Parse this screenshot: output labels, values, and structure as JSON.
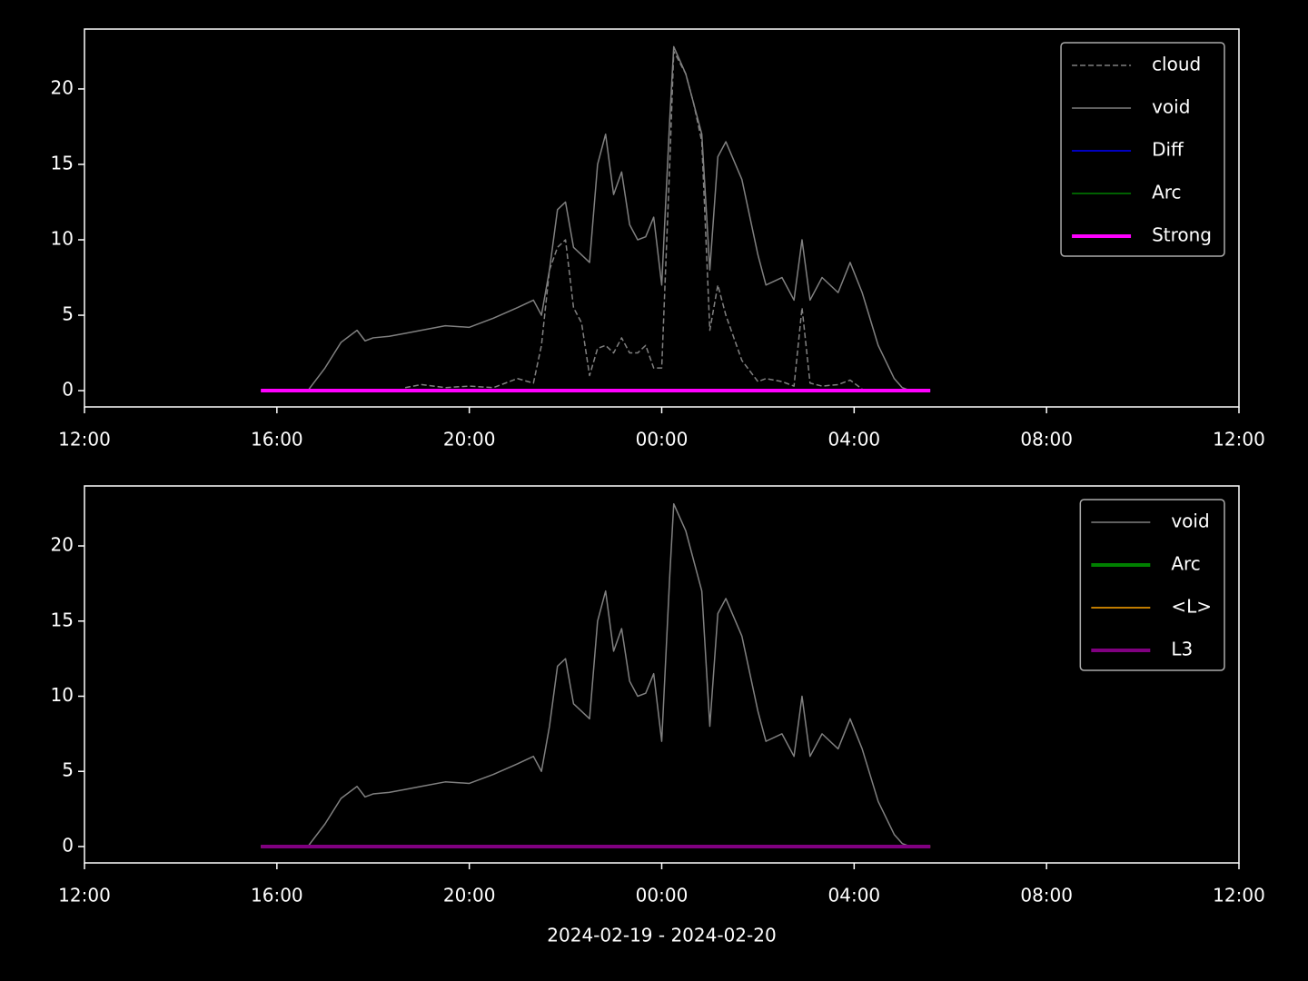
{
  "chart_data": [
    {
      "type": "line",
      "x": [
        "15:40",
        "16:00",
        "16:20",
        "16:40",
        "17:00",
        "17:20",
        "17:40",
        "17:50",
        "18:00",
        "18:20",
        "18:40",
        "19:00",
        "19:30",
        "20:00",
        "20:30",
        "21:00",
        "21:20",
        "21:30",
        "21:40",
        "21:50",
        "22:00",
        "22:10",
        "22:20",
        "22:30",
        "22:40",
        "22:50",
        "23:00",
        "23:10",
        "23:20",
        "23:30",
        "23:40",
        "23:50",
        "00:00",
        "00:10",
        "00:15",
        "00:30",
        "00:40",
        "00:50",
        "01:00",
        "01:10",
        "01:20",
        "01:40",
        "02:00",
        "02:10",
        "02:30",
        "02:45",
        "02:55",
        "03:05",
        "03:20",
        "03:40",
        "03:55",
        "04:10",
        "04:30",
        "04:50",
        "05:00",
        "05:10",
        "05:20",
        "05:35"
      ],
      "series": [
        {
          "name": "cloud",
          "color": "#808080",
          "dashed": true,
          "linewidth": 1.5,
          "values": [
            null,
            null,
            null,
            null,
            null,
            null,
            null,
            null,
            null,
            null,
            0.2,
            0.4,
            0.2,
            0.3,
            0.2,
            0.8,
            0.5,
            3.0,
            8.0,
            9.5,
            10.0,
            5.5,
            4.5,
            1.0,
            2.8,
            3.0,
            2.5,
            3.5,
            2.5,
            2.5,
            3.0,
            1.5,
            1.5,
            15,
            22.5,
            21,
            19,
            16.5,
            4.0,
            7.0,
            5.0,
            2.0,
            0.6,
            0.8,
            0.6,
            0.3,
            5.5,
            0.5,
            0.3,
            0.4,
            0.7,
            0.1,
            null,
            null,
            null,
            null,
            null,
            null
          ]
        },
        {
          "name": "void",
          "color": "#808080",
          "linewidth": 1.5,
          "values": [
            null,
            null,
            null,
            0.1,
            1.5,
            3.2,
            4.0,
            3.3,
            3.5,
            3.6,
            3.8,
            4.0,
            4.3,
            4.2,
            4.8,
            5.5,
            6.0,
            5.0,
            8.0,
            12.0,
            12.5,
            9.5,
            9.0,
            8.5,
            15.0,
            17.0,
            13.0,
            14.5,
            11.0,
            10.0,
            10.2,
            11.5,
            7.0,
            18.0,
            22.8,
            21.0,
            19.0,
            17.0,
            8.0,
            15.5,
            16.5,
            14.0,
            9.0,
            7.0,
            7.5,
            6.0,
            10.0,
            6.0,
            7.5,
            6.5,
            8.5,
            6.5,
            3.0,
            0.8,
            0.2,
            0.0,
            null,
            null
          ]
        },
        {
          "name": "Diff",
          "color": "#0000ff",
          "linewidth": 1.5,
          "values": [
            0,
            0,
            0,
            0,
            0,
            0,
            0,
            0,
            0,
            0,
            0,
            0,
            0,
            0,
            0,
            0,
            0,
            0,
            0,
            0,
            0,
            0,
            0,
            0,
            0,
            0,
            0,
            0,
            0,
            0,
            0,
            0,
            0,
            0,
            0,
            0,
            0,
            0,
            0,
            0,
            0,
            0,
            0,
            0,
            0,
            0,
            0,
            0,
            0,
            0,
            0,
            0,
            0,
            0,
            0,
            0,
            0,
            0
          ]
        },
        {
          "name": "Arc",
          "color": "#008000",
          "linewidth": 1.5,
          "values": [
            0,
            0,
            0,
            0,
            0,
            0,
            0,
            0,
            0,
            0,
            0,
            0,
            0,
            0,
            0,
            0,
            0,
            0,
            0,
            0,
            0,
            0,
            0,
            0,
            0,
            0,
            0,
            0,
            0,
            0,
            0,
            0,
            0,
            0,
            0,
            0,
            0,
            0,
            0,
            0,
            0,
            0,
            0,
            0,
            0,
            0,
            0,
            0,
            0,
            0,
            0,
            0,
            0,
            0,
            0,
            0,
            0,
            0
          ]
        },
        {
          "name": "Strong",
          "color": "#ff00ff",
          "linewidth": 4,
          "values": [
            0,
            0,
            0,
            0,
            0,
            0,
            0,
            0,
            0,
            0,
            0,
            0,
            0,
            0,
            0,
            0,
            0,
            0,
            0,
            0,
            0,
            0,
            0,
            0,
            0,
            0,
            0,
            0,
            0,
            0,
            0,
            0,
            0,
            0,
            0,
            0,
            0,
            0,
            0,
            0,
            0,
            0,
            0,
            0,
            0,
            0,
            0,
            0,
            0,
            0,
            0,
            0,
            0,
            0,
            0,
            0,
            0,
            0
          ]
        }
      ],
      "xlim": [
        "12:00",
        "12:00"
      ],
      "xticks": [
        "12:00",
        "16:00",
        "20:00",
        "00:00",
        "04:00",
        "08:00",
        "12:00"
      ],
      "ylim": [
        -1.08,
        23.97
      ],
      "yticks": [
        0,
        5,
        10,
        15,
        20
      ],
      "legend": "upper right"
    },
    {
      "type": "line",
      "x": [
        "15:40",
        "16:00",
        "16:20",
        "16:40",
        "17:00",
        "17:20",
        "17:40",
        "17:50",
        "18:00",
        "18:20",
        "18:40",
        "19:00",
        "19:30",
        "20:00",
        "20:30",
        "21:00",
        "21:20",
        "21:30",
        "21:40",
        "21:50",
        "22:00",
        "22:10",
        "22:20",
        "22:30",
        "22:40",
        "22:50",
        "23:00",
        "23:10",
        "23:20",
        "23:30",
        "23:40",
        "23:50",
        "00:00",
        "00:10",
        "00:15",
        "00:30",
        "00:40",
        "00:50",
        "01:00",
        "01:10",
        "01:20",
        "01:40",
        "02:00",
        "02:10",
        "02:30",
        "02:45",
        "02:55",
        "03:05",
        "03:20",
        "03:40",
        "03:55",
        "04:10",
        "04:30",
        "04:50",
        "05:00",
        "05:10",
        "05:20",
        "05:35"
      ],
      "series": [
        {
          "name": "void",
          "color": "#808080",
          "linewidth": 1.5,
          "values": [
            null,
            null,
            null,
            0.1,
            1.5,
            3.2,
            4.0,
            3.3,
            3.5,
            3.6,
            3.8,
            4.0,
            4.3,
            4.2,
            4.8,
            5.5,
            6.0,
            5.0,
            8.0,
            12.0,
            12.5,
            9.5,
            9.0,
            8.5,
            15.0,
            17.0,
            13.0,
            14.5,
            11.0,
            10.0,
            10.2,
            11.5,
            7.0,
            18.0,
            22.8,
            21.0,
            19.0,
            17.0,
            8.0,
            15.5,
            16.5,
            14.0,
            9.0,
            7.0,
            7.5,
            6.0,
            10.0,
            6.0,
            7.5,
            6.5,
            8.5,
            6.5,
            3.0,
            0.8,
            0.2,
            0.0,
            null,
            null
          ]
        },
        {
          "name": "Arc",
          "color": "#008000",
          "linewidth": 4,
          "values": [
            0,
            0,
            0,
            0,
            0,
            0,
            0,
            0,
            0,
            0,
            0,
            0,
            0,
            0,
            0,
            0,
            0,
            0,
            0,
            0,
            0,
            0,
            0,
            0,
            0,
            0,
            0,
            0,
            0,
            0,
            0,
            0,
            0,
            0,
            0,
            0,
            0,
            0,
            0,
            0,
            0,
            0,
            0,
            0,
            0,
            0,
            0,
            0,
            0,
            0,
            0,
            0,
            0,
            0,
            0,
            0,
            0,
            0
          ]
        },
        {
          "name": "<L>",
          "color": "#ffa500",
          "linewidth": 1.5,
          "values": [
            0,
            0,
            0,
            0,
            0,
            0,
            0,
            0,
            0,
            0,
            0,
            0,
            0,
            0,
            0,
            0,
            0,
            0,
            0,
            0,
            0,
            0,
            0,
            0,
            0,
            0,
            0,
            0,
            0,
            0,
            0,
            0,
            0,
            0,
            0,
            0,
            0,
            0,
            0,
            0,
            0,
            0,
            0,
            0,
            0,
            0,
            0,
            0,
            0,
            0,
            0,
            0,
            0,
            0,
            0,
            0,
            0,
            0
          ]
        },
        {
          "name": "L3",
          "color": "#800080",
          "linewidth": 4,
          "values": [
            0,
            0,
            0,
            0,
            0,
            0,
            0,
            0,
            0,
            0,
            0,
            0,
            0,
            0,
            0,
            0,
            0,
            0,
            0,
            0,
            0,
            0,
            0,
            0,
            0,
            0,
            0,
            0,
            0,
            0,
            0,
            0,
            0,
            0,
            0,
            0,
            0,
            0,
            0,
            0,
            0,
            0,
            0,
            0,
            0,
            0,
            0,
            0,
            0,
            0,
            0,
            0,
            0,
            0,
            0,
            0,
            0,
            0
          ]
        }
      ],
      "xlim": [
        "12:00",
        "12:00"
      ],
      "xticks": [
        "12:00",
        "16:00",
        "20:00",
        "00:00",
        "04:00",
        "08:00",
        "12:00"
      ],
      "ylim": [
        -1.09,
        23.99
      ],
      "yticks": [
        0,
        5,
        10,
        15,
        20
      ],
      "legend": "upper right",
      "xlabel": "2024-02-19 - 2024-02-20"
    }
  ]
}
